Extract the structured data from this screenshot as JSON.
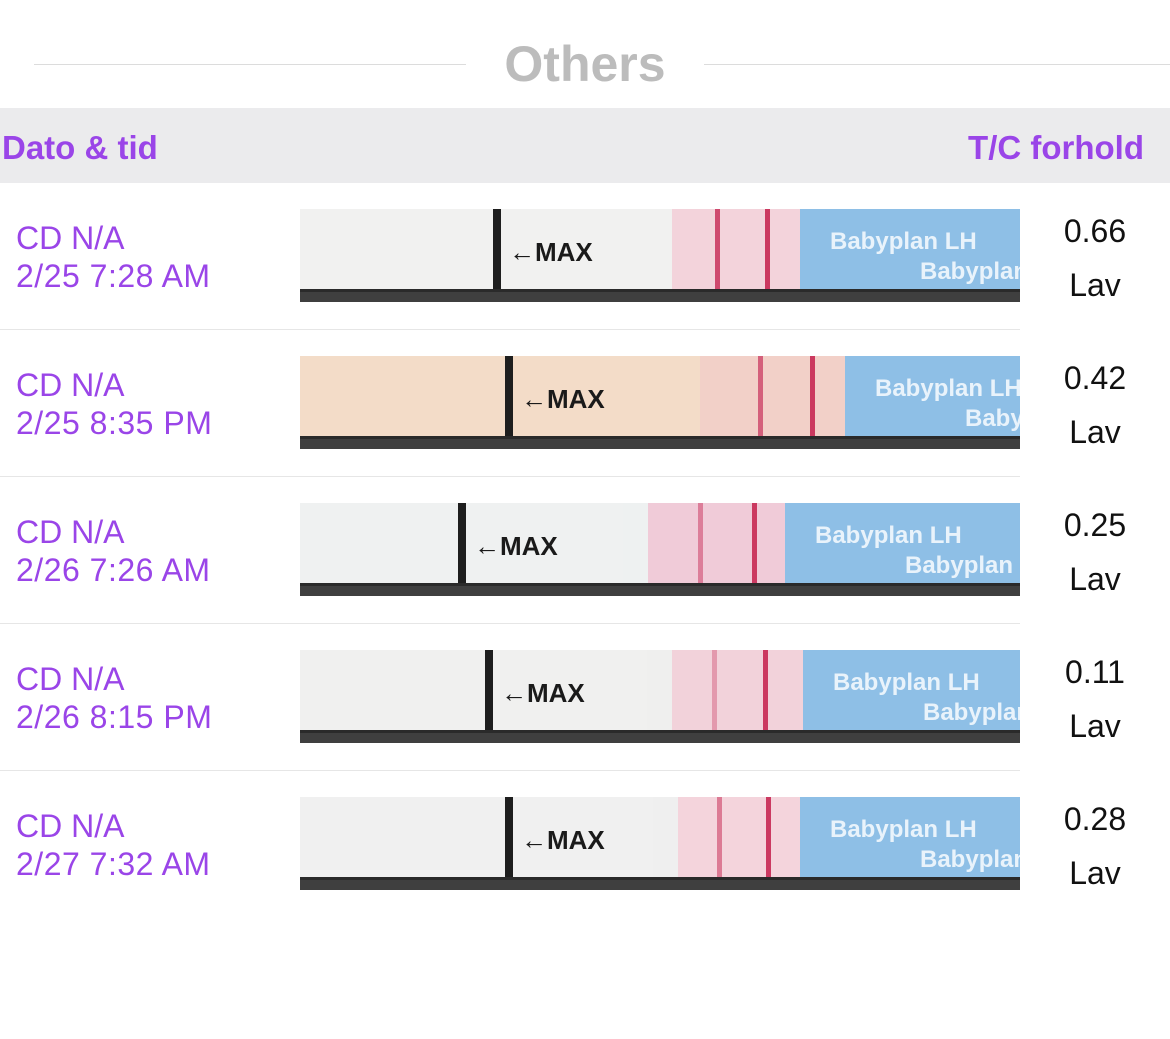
{
  "section": {
    "title": "Others"
  },
  "columns": {
    "date_label": "Dato & tid",
    "ratio_label": "T/C forhold"
  },
  "strip_text": {
    "max": "MAX",
    "brand": "Babyplan",
    "brand_lh": "Babyplan LH"
  },
  "rows": [
    {
      "cd": "CD N/A",
      "datetime": "2/25 7:28 AM",
      "ratio": "0.66",
      "level": "Lav",
      "strip_bg": "#f1f1f0",
      "pad_tint": "#f3d3db",
      "line_strength": 0.85
    },
    {
      "cd": "CD N/A",
      "datetime": "2/25 8:35 PM",
      "ratio": "0.42",
      "level": "Lav",
      "strip_bg": "#f3dcc8",
      "pad_tint": "#f2d0c8",
      "line_strength": 0.7
    },
    {
      "cd": "CD N/A",
      "datetime": "2/26 7:26 AM",
      "ratio": "0.25",
      "level": "Lav",
      "strip_bg": "#eef1f1",
      "pad_tint": "#f0cbd8",
      "line_strength": 0.5
    },
    {
      "cd": "CD N/A",
      "datetime": "2/26 8:15 PM",
      "ratio": "0.11",
      "level": "Lav",
      "strip_bg": "#efefee",
      "pad_tint": "#f2d2da",
      "line_strength": 0.35
    },
    {
      "cd": "CD N/A",
      "datetime": "2/27 7:32 AM",
      "ratio": "0.28",
      "level": "Lav",
      "strip_bg": "#efefef",
      "pad_tint": "#f4d4dc",
      "line_strength": 0.55
    }
  ],
  "colors": {
    "accent": "#9a45e8",
    "header_bg": "#ebebed",
    "section_title": "#bcbcbc",
    "blue_band": "#8ebfe6"
  }
}
